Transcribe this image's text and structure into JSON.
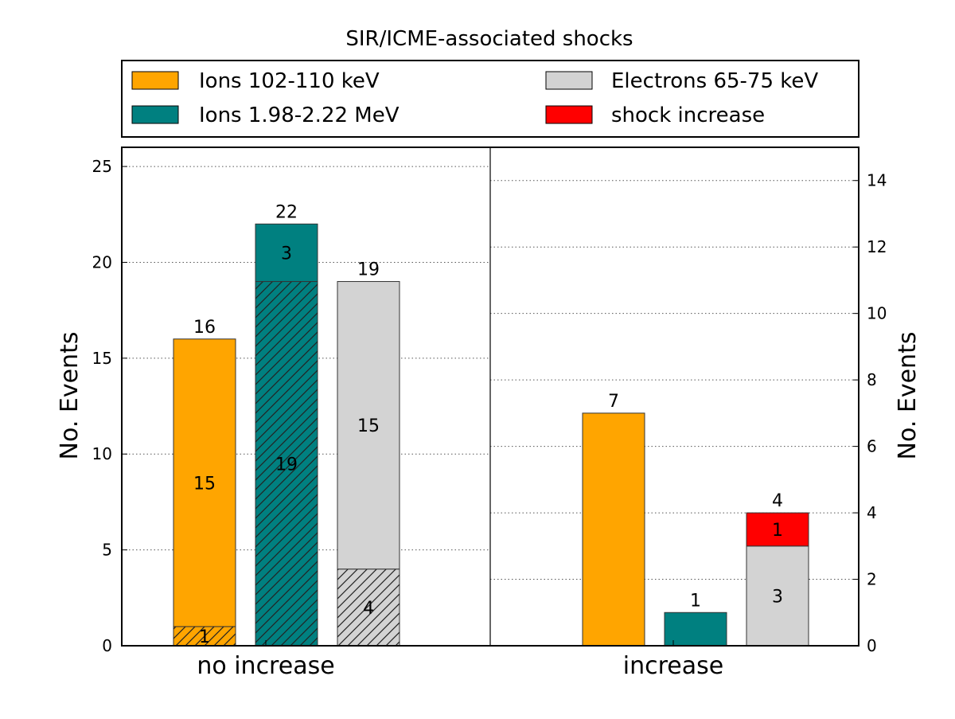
{
  "chart_data": {
    "type": "bar",
    "title": "SIR/ICME-associated shocks",
    "ylabel_left": "No. Events",
    "ylabel_right": "No. Events",
    "legend": [
      {
        "label": "Ions 102-110 keV",
        "color": "#FFA500"
      },
      {
        "label": "Electrons 65-75 keV",
        "color": "#D3D3D3"
      },
      {
        "label": "Ions 1.98-2.22 MeV",
        "color": "#008080"
      },
      {
        "label": "shock increase",
        "color": "#FF0000"
      }
    ],
    "panels": [
      {
        "category": "no increase",
        "ylim": [
          0,
          26
        ],
        "yticks": [
          "0",
          "5",
          "10",
          "15",
          "20",
          "25"
        ],
        "ytick_values": [
          0,
          5,
          10,
          15,
          20,
          25
        ],
        "bars": [
          {
            "series": "Ions 102-110 keV",
            "color": "#FFA500",
            "total": 16,
            "total_label": "16",
            "segments": [
              {
                "value": 1,
                "label": "1",
                "hatched": true
              },
              {
                "value": 15,
                "label": "15",
                "hatched": false
              }
            ]
          },
          {
            "series": "Ions 1.98-2.22 MeV",
            "color": "#008080",
            "total": 22,
            "total_label": "22",
            "segments": [
              {
                "value": 19,
                "label": "19",
                "hatched": true
              },
              {
                "value": 3,
                "label": "3",
                "hatched": false
              }
            ]
          },
          {
            "series": "Electrons 65-75 keV",
            "color": "#D3D3D3",
            "total": 19,
            "total_label": "19",
            "segments": [
              {
                "value": 4,
                "label": "4",
                "hatched": true
              },
              {
                "value": 15,
                "label": "15",
                "hatched": false
              }
            ]
          }
        ]
      },
      {
        "category": "increase",
        "ylim": [
          0,
          15
        ],
        "yticks": [
          "0",
          "2",
          "4",
          "6",
          "8",
          "10",
          "12",
          "14"
        ],
        "ytick_values": [
          0,
          2,
          4,
          6,
          8,
          10,
          12,
          14
        ],
        "bars": [
          {
            "series": "Ions 102-110 keV",
            "color": "#FFA500",
            "total": 7,
            "total_label": "7",
            "segments": [
              {
                "value": 7,
                "label": "",
                "hatched": false
              }
            ]
          },
          {
            "series": "Ions 1.98-2.22 MeV",
            "color": "#008080",
            "total": 1,
            "total_label": "1",
            "segments": [
              {
                "value": 1,
                "label": "",
                "hatched": false
              }
            ]
          },
          {
            "series": "Electrons 65-75 keV",
            "color": "#D3D3D3",
            "total": 4,
            "total_label": "4",
            "segments": [
              {
                "value": 3,
                "label": "3",
                "hatched": false
              },
              {
                "value": 1,
                "label": "1",
                "hatched": false,
                "color": "#FF0000"
              }
            ]
          }
        ]
      }
    ]
  }
}
